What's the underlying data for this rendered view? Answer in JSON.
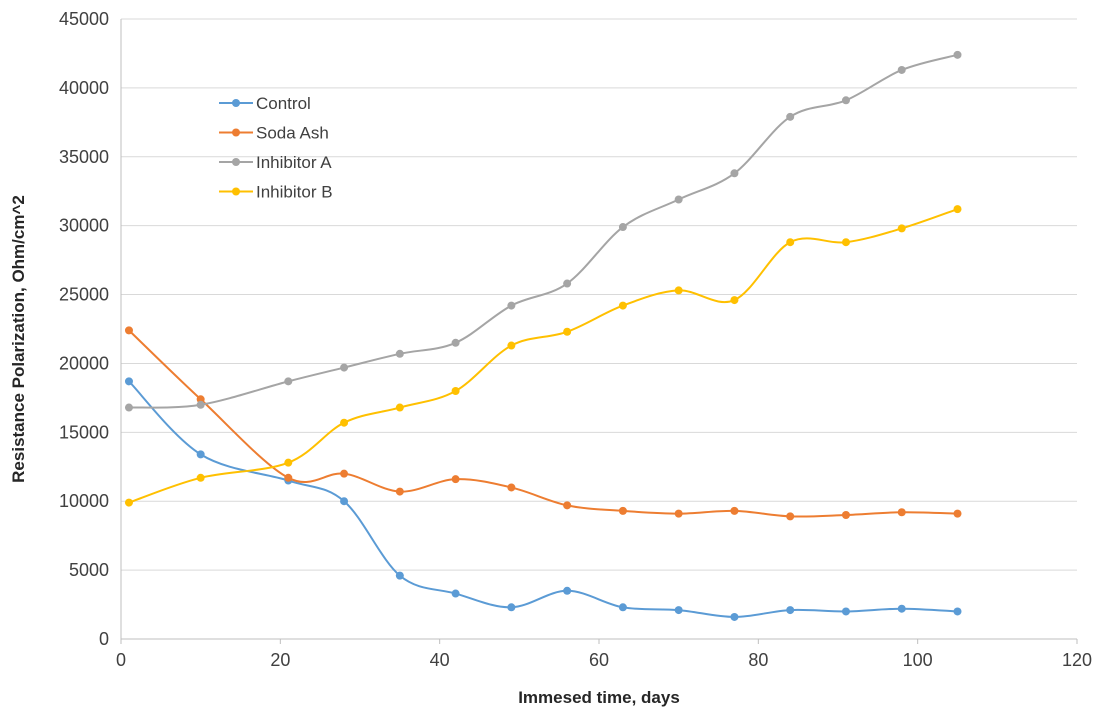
{
  "chart_data": {
    "type": "scatter",
    "title": "",
    "xlabel": "Immesed time, days",
    "ylabel": "Resistance Polarization, Ohm/cm^2",
    "xlim": [
      0,
      120
    ],
    "ylim": [
      0,
      45000
    ],
    "x_ticks": [
      "0",
      "20",
      "40",
      "60",
      "80",
      "100",
      "120"
    ],
    "y_ticks": [
      "0",
      "5000",
      "10000",
      "15000",
      "20000",
      "25000",
      "30000",
      "35000",
      "40000",
      "45000"
    ],
    "grid": "horizontal",
    "legend_position": "top-left",
    "smoothed_lines": true,
    "x": [
      1,
      10,
      21,
      28,
      35,
      42,
      49,
      56,
      63,
      70,
      77,
      84,
      91,
      98,
      105
    ],
    "series": [
      {
        "name": "Control",
        "color": "#5b9bd5",
        "values": [
          18700,
          13400,
          11500,
          10000,
          4600,
          3300,
          2300,
          3500,
          2300,
          2100,
          1600,
          2100,
          2000,
          2200,
          2000
        ]
      },
      {
        "name": "Soda Ash",
        "color": "#ed7d31",
        "values": [
          22400,
          17400,
          11700,
          12000,
          10700,
          11600,
          11000,
          9700,
          9300,
          9100,
          9300,
          8900,
          9000,
          9200,
          9100
        ]
      },
      {
        "name": "Inhibitor A",
        "color": "#a5a5a5",
        "values": [
          16800,
          17000,
          18700,
          19700,
          20700,
          21500,
          24200,
          25800,
          29900,
          31900,
          33800,
          37900,
          39100,
          41300,
          42400
        ]
      },
      {
        "name": "Inhibitor B",
        "color": "#ffc000",
        "values": [
          9900,
          11700,
          12800,
          15700,
          16800,
          18000,
          21300,
          22300,
          24200,
          25300,
          24600,
          28800,
          28800,
          29800,
          31200
        ]
      }
    ]
  }
}
